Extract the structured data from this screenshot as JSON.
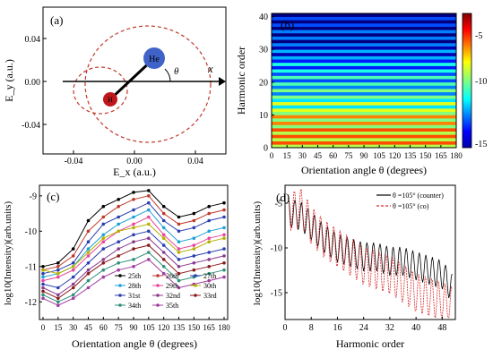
{
  "panels": {
    "a": {
      "label": "(a)",
      "xlabel": "E_x (a.u.)",
      "ylabel": "E_y (a.u.)",
      "x_ticks": [
        "-0.04",
        "0.00",
        "0.04"
      ],
      "y_ticks": [
        "0.04",
        "0.00",
        "-0.04"
      ],
      "atom_he": "He",
      "atom_h": "H",
      "theta_symbol": "θ",
      "axis_symbol": "x",
      "colors": {
        "ellipse": "#c0392b",
        "he": "#3f63c8",
        "h": "#c0171c",
        "bond": "#000000"
      }
    },
    "b": {
      "label": "(b)",
      "xlabel": "Orientation angle θ (degrees)",
      "ylabel": "Harmonic order",
      "x_ticks": [
        "0",
        "15",
        "30",
        "45",
        "60",
        "75",
        "90",
        "105",
        "120",
        "135",
        "150",
        "165",
        "180"
      ],
      "y_ticks": [
        "0",
        "10",
        "20",
        "30",
        "40"
      ],
      "colorbar_ticks": [
        "-5",
        "-10",
        "-15"
      ]
    },
    "c": {
      "label": "(c)",
      "xlabel": "Orientation angle θ (degrees)",
      "ylabel": "log10(Intensity)(arb.units)",
      "x_ticks": [
        "0",
        "15",
        "30",
        "45",
        "60",
        "75",
        "90",
        "105",
        "120",
        "135",
        "150",
        "165",
        "180"
      ],
      "y_ticks": [
        "-9",
        "-10",
        "-11",
        "-12"
      ]
    },
    "d": {
      "label": "(d)",
      "xlabel": "Harmonic order",
      "ylabel": "log10(Intensity)(arb.units)",
      "x_ticks": [
        "0",
        "8",
        "16",
        "24",
        "32",
        "40",
        "48"
      ],
      "y_ticks": [
        "-5",
        "-10",
        "-15"
      ],
      "legend": [
        "θ =105° (counter)",
        "θ =105° (co)"
      ]
    }
  },
  "chart_data": [
    {
      "type": "scatter",
      "panel": "a",
      "xlim": [
        -0.06,
        0.06
      ],
      "ylim": [
        -0.06,
        0.06
      ],
      "grid": false
    },
    {
      "type": "heatmap",
      "panel": "b",
      "x": [
        0,
        15,
        30,
        45,
        60,
        75,
        90,
        105,
        120,
        135,
        150,
        165,
        180
      ],
      "y": [
        0,
        10,
        20,
        30,
        40
      ],
      "xlim": [
        0,
        180
      ],
      "ylim": [
        0,
        41
      ],
      "colorbar_range": [
        -15,
        -5
      ],
      "colormap": "jet",
      "band_values": [
        {
          "order_range": [
            0,
            6
          ],
          "value": -7
        },
        {
          "order_range": [
            6,
            11
          ],
          "value": -7.5
        },
        {
          "order_range": [
            11,
            15
          ],
          "value": -9
        },
        {
          "order_range": [
            15,
            19
          ],
          "value": -10
        },
        {
          "order_range": [
            19,
            23
          ],
          "value": -10.5
        },
        {
          "order_range": [
            23,
            27
          ],
          "value": -11
        },
        {
          "order_range": [
            27,
            31
          ],
          "value": -12
        },
        {
          "order_range": [
            31,
            36
          ],
          "value": -12.5
        },
        {
          "order_range": [
            36,
            41
          ],
          "value": -13
        }
      ]
    },
    {
      "type": "line",
      "panel": "c",
      "x": [
        0,
        15,
        30,
        45,
        60,
        75,
        90,
        105,
        120,
        135,
        150,
        165,
        180
      ],
      "xlim": [
        0,
        180
      ],
      "ylim": [
        -12.5,
        -8.7
      ],
      "legend_position": "bottom-right",
      "series": [
        {
          "name": "25th",
          "color": "#000000",
          "values": [
            -11.0,
            -10.9,
            -10.5,
            -9.7,
            -9.3,
            -9.1,
            -8.9,
            -8.85,
            -9.3,
            -9.6,
            -9.5,
            -9.3,
            -9.2
          ]
        },
        {
          "name": "26th",
          "color": "#c0392b",
          "values": [
            -11.1,
            -11.0,
            -10.7,
            -10.0,
            -9.6,
            -9.3,
            -9.1,
            -9.0,
            -9.5,
            -9.8,
            -9.7,
            -9.5,
            -9.4
          ]
        },
        {
          "name": "27th",
          "color": "#2a3fb0",
          "values": [
            -11.2,
            -11.1,
            -10.9,
            -10.3,
            -9.8,
            -9.6,
            -9.4,
            -9.2,
            -9.7,
            -10.0,
            -9.9,
            -9.7,
            -9.6
          ]
        },
        {
          "name": "28th",
          "color": "#1fa0d8",
          "values": [
            -11.3,
            -11.2,
            -11.0,
            -10.5,
            -10.1,
            -9.8,
            -9.6,
            -9.4,
            -9.9,
            -10.3,
            -10.2,
            -10.0,
            -9.9
          ]
        },
        {
          "name": "29th",
          "color": "#e8469d",
          "values": [
            -11.4,
            -11.3,
            -11.1,
            -10.7,
            -10.3,
            -10.0,
            -9.8,
            -9.6,
            -10.1,
            -10.5,
            -10.4,
            -10.2,
            -10.1
          ]
        },
        {
          "name": "30th",
          "color": "#b5b000",
          "values": [
            -11.1,
            -11.2,
            -11.0,
            -10.6,
            -10.2,
            -10.0,
            -9.9,
            -9.8,
            -10.2,
            -10.6,
            -10.5,
            -10.3,
            -10.2
          ]
        },
        {
          "name": "31st",
          "color": "#2a3fb0",
          "values": [
            -11.5,
            -11.6,
            -11.3,
            -10.9,
            -10.5,
            -10.3,
            -10.1,
            -10.0,
            -10.4,
            -10.8,
            -10.7,
            -10.6,
            -10.5
          ]
        },
        {
          "name": "32nd",
          "color": "#8a3c8f",
          "values": [
            -11.6,
            -11.8,
            -11.5,
            -11.1,
            -10.8,
            -10.5,
            -10.3,
            -10.2,
            -10.6,
            -11.0,
            -10.9,
            -10.8,
            -10.7
          ]
        },
        {
          "name": "33rd",
          "color": "#8b1a1a",
          "values": [
            -11.7,
            -11.9,
            -11.6,
            -11.2,
            -10.9,
            -10.7,
            -10.5,
            -10.4,
            -10.8,
            -11.2,
            -11.1,
            -11.0,
            -10.9
          ]
        },
        {
          "name": "34th",
          "color": "#2f8f7a",
          "values": [
            -11.8,
            -12.0,
            -11.8,
            -11.4,
            -11.1,
            -10.9,
            -10.8,
            -10.6,
            -11.0,
            -11.4,
            -11.3,
            -11.2,
            -11.1
          ]
        },
        {
          "name": "35th",
          "color": "#a03ca0",
          "values": [
            -11.9,
            -12.1,
            -11.9,
            -11.6,
            -11.3,
            -11.1,
            -11.0,
            -10.8,
            -11.2,
            -11.6,
            -11.5,
            -11.4,
            -11.3
          ]
        }
      ]
    },
    {
      "type": "line",
      "panel": "d",
      "xlim": [
        0,
        52
      ],
      "ylim": [
        -18,
        -3
      ],
      "legend_position": "top-right",
      "series": [
        {
          "name": "θ =105° (counter)",
          "color": "#000000",
          "envelope": [
            [
              1,
              -6
            ],
            [
              5,
              -6.5
            ],
            [
              8,
              -7.5
            ],
            [
              12,
              -9
            ],
            [
              16,
              -10
            ],
            [
              20,
              -10.5
            ],
            [
              24,
              -11
            ],
            [
              28,
              -11
            ],
            [
              32,
              -11.5
            ],
            [
              36,
              -11.5
            ],
            [
              40,
              -12
            ],
            [
              44,
              -12.5
            ],
            [
              48,
              -13
            ],
            [
              51,
              -14.5
            ]
          ]
        },
        {
          "name": "θ =105° (co)",
          "color": "#d62728",
          "envelope": [
            [
              1,
              -6
            ],
            [
              5,
              -5.5
            ],
            [
              8,
              -7.5
            ],
            [
              12,
              -9
            ],
            [
              16,
              -10
            ],
            [
              20,
              -11
            ],
            [
              24,
              -12
            ],
            [
              28,
              -12.5
            ],
            [
              32,
              -13
            ],
            [
              36,
              -14
            ],
            [
              40,
              -15
            ],
            [
              44,
              -15.5
            ],
            [
              48,
              -16
            ],
            [
              51,
              -16.5
            ]
          ]
        }
      ]
    }
  ]
}
